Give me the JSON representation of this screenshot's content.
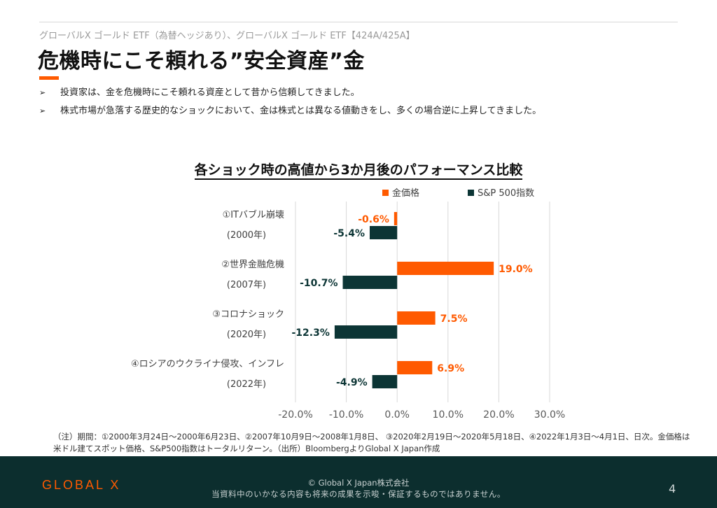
{
  "header": {
    "subtitle": "グローバルX ゴールド ETF（為替ヘッジあり）、グローバルX ゴールド ETF【424A/425A】",
    "title": "危機時にこそ頼れる”安全資産”金"
  },
  "bullets": [
    "投資家は、金を危機時にこそ頼れる資産として昔から信頼してきました。",
    "株式市場が急落する歴史的なショックにおいて、金は株式とは異なる値動きをし、多くの場合逆に上昇してきました。"
  ],
  "colors": {
    "accent": "#ff5a00",
    "dark": "#0c3535",
    "footer": "#0c2e2e"
  },
  "chart_data": {
    "type": "bar",
    "orientation": "horizontal",
    "title": "各ショック時の高値から3か月後のパフォーマンス比較",
    "legend_position": "top-right",
    "categories": [
      [
        "①ITバブル崩壊",
        "(2000年)"
      ],
      [
        "②世界金融危機",
        "(2007年)"
      ],
      [
        "③コロナショック",
        "(2020年)"
      ],
      [
        "④ロシアのウクライナ侵攻、インフレ",
        "(2022年)"
      ]
    ],
    "series": [
      {
        "name": "金価格",
        "color": "#ff5a00",
        "values": [
          -0.6,
          19.0,
          7.5,
          6.9
        ],
        "labels": [
          "-0.6%",
          "19.0%",
          "7.5%",
          "6.9%"
        ]
      },
      {
        "name": "S&P 500指数",
        "color": "#0c3535",
        "values": [
          -5.4,
          -10.7,
          -12.3,
          -4.9
        ],
        "labels": [
          "-5.4%",
          "-10.7%",
          "-12.3%",
          "-4.9%"
        ]
      }
    ],
    "xlim": [
      -20,
      30
    ],
    "xticks": [
      "-20.0%",
      "-10.0%",
      "0.0%",
      "10.0%",
      "20.0%",
      "30.0%"
    ],
    "grid": true
  },
  "note": "（注）期間：①2000年3月24日～2000年6月23日、②2007年10月9日～2008年1月8日、 ③2020年2月19日～2020年5月18日、④2022年1月3日～4月1日、日次。金価格は米ドル建てスポット価格、S&P500指数はトータルリターン。（出所）BloombergよりGlobal X Japan作成",
  "footer": {
    "logo": "GLOBAL X",
    "copyright": "© Global X Japan株式会社",
    "disclaimer": "当資料中のいかなる内容も将来の成果を示唆・保証するものではありません。",
    "page": "4"
  }
}
